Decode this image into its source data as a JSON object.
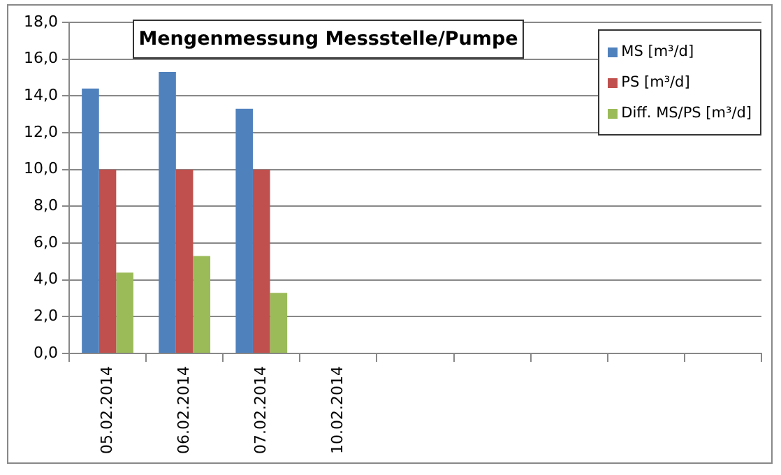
{
  "chart_data": {
    "type": "bar",
    "title": "Mengenmessung Messstelle/Pumpe",
    "categories": [
      "05.02.2014",
      "06.02.2014",
      "07.02.2014",
      "10.02.2014",
      null,
      null,
      null,
      null,
      null
    ],
    "series": [
      {
        "name": "MS [m³/d]",
        "color": "#4f81bd",
        "values": [
          14.4,
          15.3,
          13.3,
          null,
          null,
          null,
          null,
          null,
          null
        ]
      },
      {
        "name": "PS [m³/d]",
        "color": "#c0504d",
        "values": [
          10,
          10,
          10,
          null,
          null,
          null,
          null,
          null,
          null
        ]
      },
      {
        "name": "Diff. MS/PS [m³/d]",
        "color": "#9bbb59",
        "values": [
          4.4,
          5.3,
          3.3,
          null,
          null,
          null,
          null,
          null,
          null
        ]
      }
    ],
    "ylim": [
      0,
      18
    ],
    "yticks": [
      {
        "value": 0,
        "label": "0,0"
      },
      {
        "value": 2,
        "label": "2,0"
      },
      {
        "value": 4,
        "label": "4,0"
      },
      {
        "value": 6,
        "label": "6,0"
      },
      {
        "value": 8,
        "label": "8,0"
      },
      {
        "value": 10,
        "label": "10,0"
      },
      {
        "value": 12,
        "label": "12,0"
      },
      {
        "value": 14,
        "label": "14,0"
      },
      {
        "value": 16,
        "label": "16,0"
      },
      {
        "value": 18,
        "label": "18,0"
      }
    ],
    "grid": "y",
    "legend": "top right"
  }
}
